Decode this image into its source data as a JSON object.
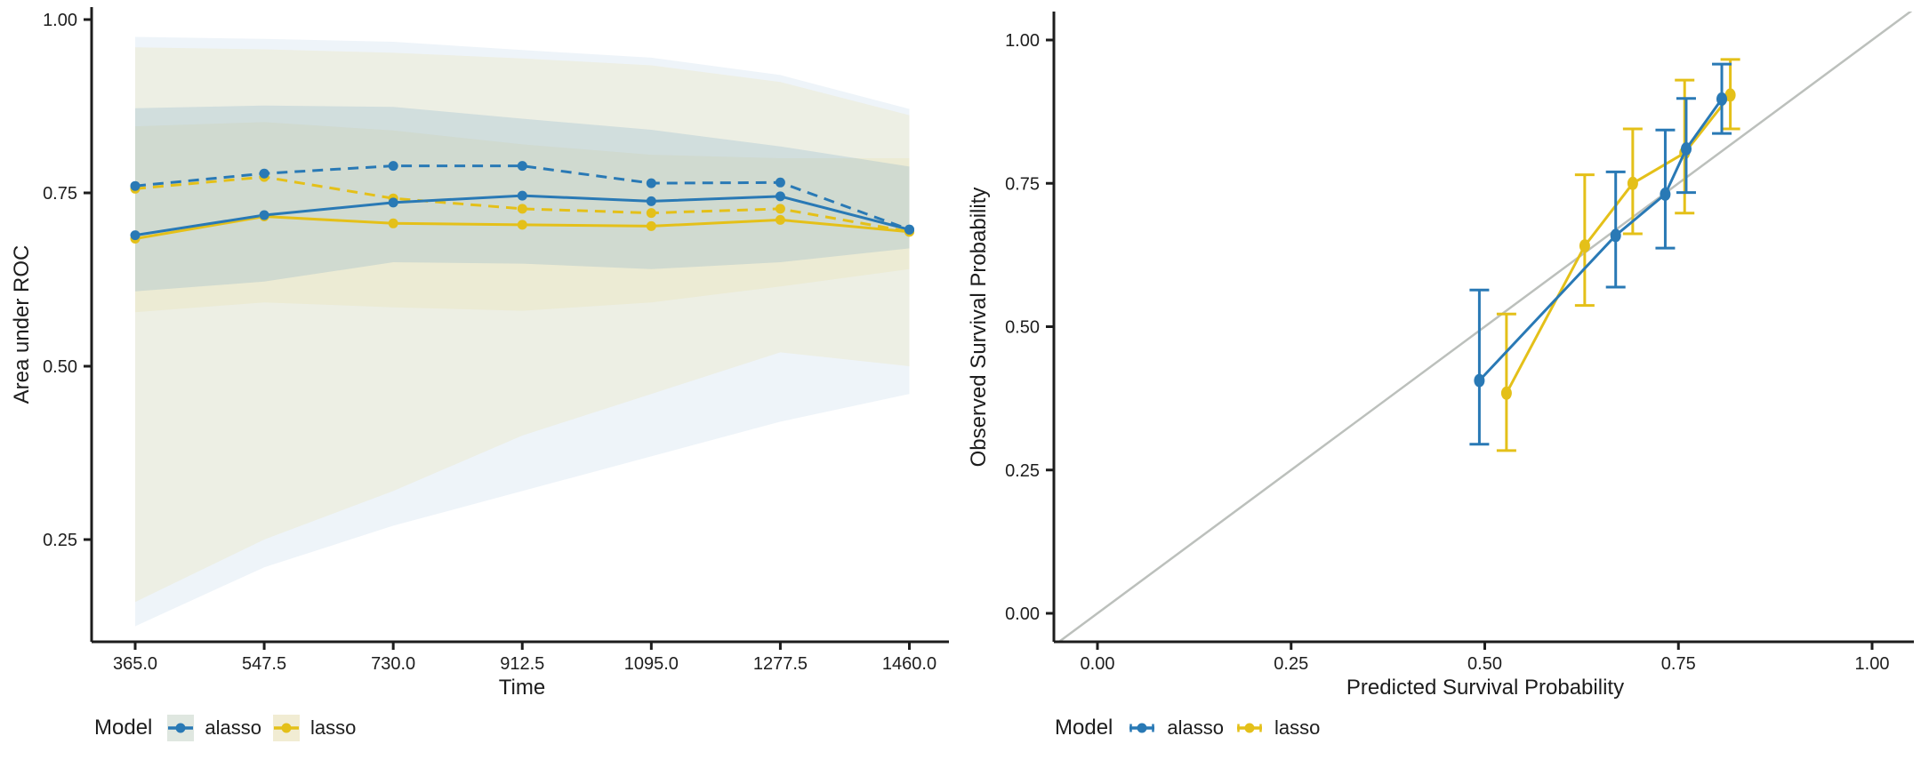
{
  "figure": {
    "background": "#ffffff",
    "colors": {
      "alasso": "#2979b5",
      "lasso": "#e4c019",
      "reference_line": "#bcc0bc",
      "axis": "#1d1d1d",
      "alasso_key_bg": "#dfe7e0",
      "lasso_key_bg": "#f1ecd3"
    }
  },
  "chart_data": [
    {
      "id": "auc-over-time",
      "type": "line",
      "title": "",
      "xlabel": "Time",
      "ylabel": "Area under ROC",
      "grid": false,
      "legend_position": "bottom",
      "x": [
        365.0,
        547.5,
        730.0,
        912.5,
        1095.0,
        1277.5,
        1460.0
      ],
      "x_tick_labels": [
        "365.0",
        "547.5",
        "730.0",
        "912.5",
        "1095.0",
        "1277.5",
        "1460.0"
      ],
      "y_ticks": [
        1.0,
        0.75,
        0.5,
        0.25
      ],
      "y_tick_labels": [
        "1.00",
        "0.75",
        "0.50",
        "0.25"
      ],
      "xlim": [
        365,
        1460
      ],
      "ylim": [
        0.1,
        1.02
      ],
      "series": [
        {
          "name": "lasso",
          "linetype": "dashed",
          "color": "lasso",
          "values": [
            0.756,
            0.773,
            0.742,
            0.727,
            0.721,
            0.727,
            0.694
          ]
        },
        {
          "name": "alasso",
          "linetype": "dashed",
          "color": "alasso",
          "values": [
            0.76,
            0.778,
            0.789,
            0.789,
            0.764,
            0.765,
            0.697
          ]
        },
        {
          "name": "lasso",
          "linetype": "solid",
          "color": "lasso",
          "values": [
            0.684,
            0.716,
            0.706,
            0.704,
            0.702,
            0.711,
            0.694
          ]
        },
        {
          "name": "alasso",
          "linetype": "solid",
          "color": "alasso",
          "values": [
            0.689,
            0.718,
            0.736,
            0.746,
            0.738,
            0.745,
            0.697
          ]
        }
      ],
      "ribbons": [
        {
          "name": "alasso-outer",
          "color": "#2979b5",
          "alpha": 0.08,
          "lower": [
            0.125,
            0.21,
            0.27,
            0.32,
            0.37,
            0.42,
            0.46
          ],
          "upper": [
            0.975,
            0.972,
            0.968,
            0.956,
            0.945,
            0.92,
            0.871
          ]
        },
        {
          "name": "lasso-outer",
          "color": "#e4c019",
          "alpha": 0.09,
          "lower": [
            0.16,
            0.25,
            0.32,
            0.4,
            0.46,
            0.52,
            0.5
          ],
          "upper": [
            0.96,
            0.957,
            0.952,
            0.944,
            0.934,
            0.91,
            0.862
          ]
        },
        {
          "name": "lasso-inner",
          "color": "#e4c019",
          "alpha": 0.08,
          "lower": [
            0.578,
            0.592,
            0.585,
            0.58,
            0.592,
            0.615,
            0.64
          ],
          "upper": [
            0.846,
            0.852,
            0.84,
            0.82,
            0.805,
            0.8,
            0.8
          ]
        },
        {
          "name": "alasso-inner",
          "color": "#2979b5",
          "alpha": 0.14,
          "lower": [
            0.608,
            0.622,
            0.65,
            0.648,
            0.64,
            0.65,
            0.67
          ],
          "upper": [
            0.872,
            0.876,
            0.874,
            0.857,
            0.841,
            0.817,
            0.788
          ]
        }
      ],
      "legend": {
        "title": "Model",
        "entries": [
          {
            "label": "alasso"
          },
          {
            "label": "lasso"
          }
        ]
      }
    },
    {
      "id": "calibration",
      "type": "scatter",
      "title": "",
      "xlabel": "Predicted Survival Probability",
      "ylabel": "Observed Survival Probability",
      "grid": false,
      "legend_position": "bottom",
      "x_ticks": [
        0.0,
        0.25,
        0.5,
        0.75,
        1.0
      ],
      "x_tick_labels": [
        "0.00",
        "0.25",
        "0.50",
        "0.75",
        "1.00"
      ],
      "y_ticks": [
        1.0,
        0.75,
        0.5,
        0.25,
        0.0
      ],
      "y_tick_labels": [
        "1.00",
        "0.75",
        "0.50",
        "0.25",
        "0.00"
      ],
      "xlim": [
        0,
        1
      ],
      "ylim": [
        0,
        1
      ],
      "reference_line": {
        "slope": 1,
        "intercept": 0
      },
      "series": [
        {
          "name": "lasso",
          "color": "lasso",
          "points": [
            {
              "x": 0.528,
              "y": 0.384,
              "lower": 0.284,
              "upper": 0.522
            },
            {
              "x": 0.629,
              "y": 0.641,
              "lower": 0.537,
              "upper": 0.765
            },
            {
              "x": 0.691,
              "y": 0.75,
              "lower": 0.662,
              "upper": 0.845
            },
            {
              "x": 0.758,
              "y": 0.803,
              "lower": 0.698,
              "upper": 0.93
            },
            {
              "x": 0.817,
              "y": 0.904,
              "lower": 0.845,
              "upper": 0.966
            }
          ]
        },
        {
          "name": "alasso",
          "color": "alasso",
          "points": [
            {
              "x": 0.493,
              "y": 0.406,
              "lower": 0.295,
              "upper": 0.564
            },
            {
              "x": 0.669,
              "y": 0.659,
              "lower": 0.569,
              "upper": 0.77
            },
            {
              "x": 0.733,
              "y": 0.731,
              "lower": 0.637,
              "upper": 0.843
            },
            {
              "x": 0.76,
              "y": 0.81,
              "lower": 0.734,
              "upper": 0.898
            },
            {
              "x": 0.806,
              "y": 0.897,
              "lower": 0.837,
              "upper": 0.958
            }
          ]
        }
      ],
      "legend": {
        "title": "Model",
        "entries": [
          {
            "label": "alasso"
          },
          {
            "label": "lasso"
          }
        ]
      }
    }
  ]
}
